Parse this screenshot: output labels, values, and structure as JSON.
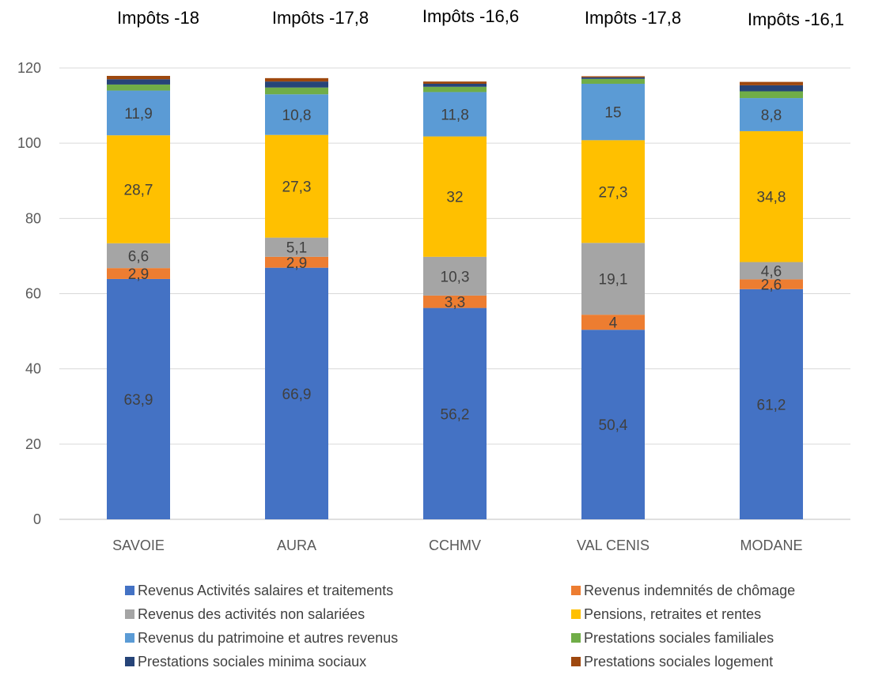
{
  "chart_data": {
    "type": "bar",
    "stacked": true,
    "categories": [
      "SAVOIE",
      "AURA",
      "CCHMV",
      "VAL CENIS",
      "MODANE"
    ],
    "headers": [
      "Impôts -18",
      "Impôts -17,8",
      "Impôts -16,6",
      "Impôts -17,8",
      "Impôts -16,1"
    ],
    "ylim": [
      0,
      120
    ],
    "yticks": [
      0,
      20,
      40,
      60,
      80,
      100,
      120
    ],
    "grid": true,
    "legend_position": "bottom",
    "series": [
      {
        "name": "Revenus Activités salaires et traitements",
        "color": "#4472C4",
        "values": [
          63.9,
          66.9,
          56.2,
          50.4,
          61.2
        ],
        "labels": [
          "63,9",
          "66,9",
          "56,2",
          "50,4",
          "61,2"
        ]
      },
      {
        "name": "Revenus indemnités de chômage",
        "color": "#ED7D31",
        "values": [
          2.9,
          2.9,
          3.3,
          4,
          2.6
        ],
        "labels": [
          "2,9",
          "2,9",
          "3,3",
          "4",
          "2,6"
        ]
      },
      {
        "name": "Revenus des activités non salariées",
        "color": "#A5A5A5",
        "values": [
          6.6,
          5.1,
          10.3,
          19.1,
          4.6
        ],
        "labels": [
          "6,6",
          "5,1",
          "10,3",
          "19,1",
          "4,6"
        ]
      },
      {
        "name": "Pensions, retraites et rentes",
        "color": "#FFC000",
        "values": [
          28.7,
          27.3,
          32,
          27.3,
          34.8
        ],
        "labels": [
          "28,7",
          "27,3",
          "32",
          "27,3",
          "34,8"
        ]
      },
      {
        "name": "Revenus du patrimoine et autres revenus",
        "color": "#5B9BD5",
        "values": [
          11.9,
          10.8,
          11.8,
          15,
          8.8
        ],
        "labels": [
          "11,9",
          "10,8",
          "11,8",
          "15",
          "8,8"
        ]
      },
      {
        "name": "Prestations sociales  familiales",
        "color": "#70AD47",
        "values": [
          1.6,
          1.8,
          1.4,
          1.3,
          1.8
        ],
        "labels": [
          "",
          "",
          "",
          "",
          ""
        ]
      },
      {
        "name": " Prestations sociales minima sociaux",
        "color": "#264478",
        "values": [
          1.4,
          1.6,
          0.8,
          0.4,
          1.6
        ],
        "labels": [
          "",
          "",
          "",
          "",
          ""
        ]
      },
      {
        "name": "Prestations sociales logement",
        "color": "#9E480E",
        "values": [
          0.9,
          0.9,
          0.6,
          0.3,
          0.9
        ],
        "labels": [
          "",
          "",
          "",
          "",
          ""
        ]
      }
    ]
  }
}
